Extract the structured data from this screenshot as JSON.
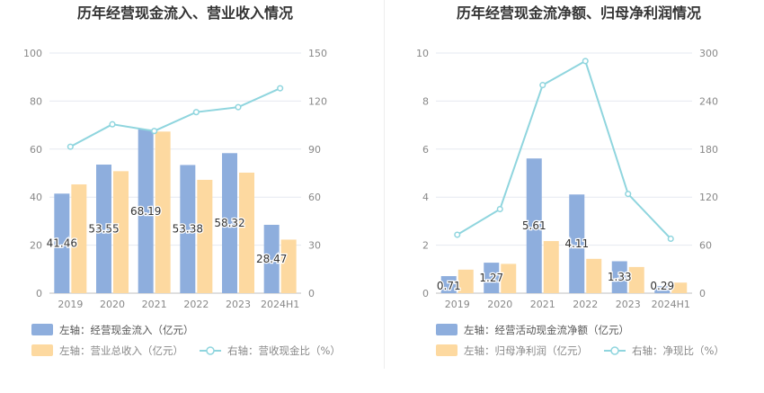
{
  "chart_data": [
    {
      "type": "bar",
      "title": "历年经营现金流入、营业收入情况",
      "categories": [
        "2019",
        "2020",
        "2021",
        "2022",
        "2023",
        "2024H1"
      ],
      "left_axis": {
        "min": 0,
        "max": 100,
        "ticks": [
          "0",
          "20",
          "40",
          "60",
          "80",
          "100"
        ]
      },
      "right_axis": {
        "min": 0,
        "max": 150,
        "ticks": [
          "0",
          "30",
          "60",
          "90",
          "120",
          "150"
        ]
      },
      "series": [
        {
          "name": "左轴：经营现金流入（亿元）",
          "kind": "bar",
          "axis": "left",
          "color": "#8eaedd",
          "values": [
            41.46,
            53.55,
            68.19,
            53.38,
            58.32,
            28.47
          ],
          "labels": [
            "41.46",
            "53.55",
            "68.19",
            "53.38",
            "58.32",
            "28.47"
          ]
        },
        {
          "name": "左轴：营业总收入（亿元）",
          "kind": "bar",
          "axis": "left",
          "color": "#fdd9a0",
          "values": [
            45.3,
            50.8,
            67.3,
            47.2,
            50.2,
            22.3
          ]
        },
        {
          "name": "右轴：营收现金比（%）",
          "kind": "line",
          "axis": "right",
          "color": "#8fd5de",
          "values": [
            91.5,
            105.5,
            101.3,
            113.1,
            116.2,
            128.0
          ]
        }
      ]
    },
    {
      "type": "bar",
      "title": "历年经营现金流净额、归母净利润情况",
      "categories": [
        "2019",
        "2020",
        "2021",
        "2022",
        "2023",
        "2024H1"
      ],
      "left_axis": {
        "min": 0,
        "max": 10,
        "ticks": [
          "0",
          "2",
          "4",
          "6",
          "8",
          "10"
        ]
      },
      "right_axis": {
        "min": 0,
        "max": 300,
        "ticks": [
          "0",
          "60",
          "120",
          "180",
          "240",
          "300"
        ]
      },
      "series": [
        {
          "name": "左轴：经营活动现金流净额（亿元）",
          "kind": "bar",
          "axis": "left",
          "color": "#8eaedd",
          "values": [
            0.71,
            1.27,
            5.61,
            4.11,
            1.33,
            0.29
          ],
          "labels": [
            "0.71",
            "1.27",
            "5.61",
            "4.11",
            "1.33",
            "0.29"
          ]
        },
        {
          "name": "左轴：归母净利润（亿元）",
          "kind": "bar",
          "axis": "left",
          "color": "#fdd9a0",
          "values": [
            0.98,
            1.22,
            2.17,
            1.43,
            1.09,
            0.44
          ]
        },
        {
          "name": "右轴：净现比（%）",
          "kind": "line",
          "axis": "right",
          "color": "#8fd5de",
          "values": [
            73,
            105,
            260,
            290,
            124,
            68
          ]
        }
      ]
    }
  ]
}
